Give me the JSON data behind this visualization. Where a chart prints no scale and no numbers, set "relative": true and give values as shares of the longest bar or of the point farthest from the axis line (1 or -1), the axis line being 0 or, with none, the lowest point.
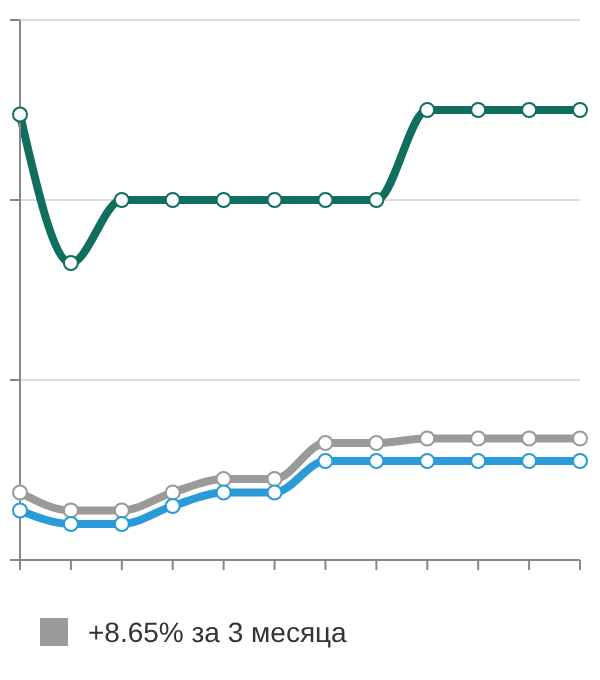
{
  "chart_data": {
    "type": "line",
    "relative": true,
    "categories": [
      null,
      null,
      null,
      null,
      null,
      null,
      null,
      null,
      null,
      null,
      null,
      null
    ],
    "series": [
      {
        "color": "#0f6e5e",
        "values": [
          0.99,
          0.66,
          0.8,
          0.8,
          0.8,
          0.8,
          0.8,
          0.8,
          1,
          1,
          1,
          1
        ]
      },
      {
        "name": "+8.65% за 3 месяца",
        "color": "#9a9a9a",
        "values": [
          0.15,
          0.11,
          0.11,
          0.15,
          0.18,
          0.18,
          0.26,
          0.26,
          0.27,
          0.27,
          0.27,
          0.27
        ]
      },
      {
        "color": "#2a9ad8",
        "values": [
          0.11,
          0.08,
          0.08,
          0.12,
          0.15,
          0.15,
          0.22,
          0.22,
          0.22,
          0.22,
          0.22,
          0.22
        ]
      }
    ],
    "ref_lines": [
      {
        "axis": "y",
        "value": 0.4,
        "color": "#dddddd"
      },
      {
        "axis": "y",
        "value": 0.8,
        "color": "#dddddd"
      },
      {
        "axis": "y",
        "value": 1.2,
        "color": "#dddddd"
      }
    ],
    "legend": "bottom",
    "marker": "circle",
    "line_style": "solid"
  }
}
